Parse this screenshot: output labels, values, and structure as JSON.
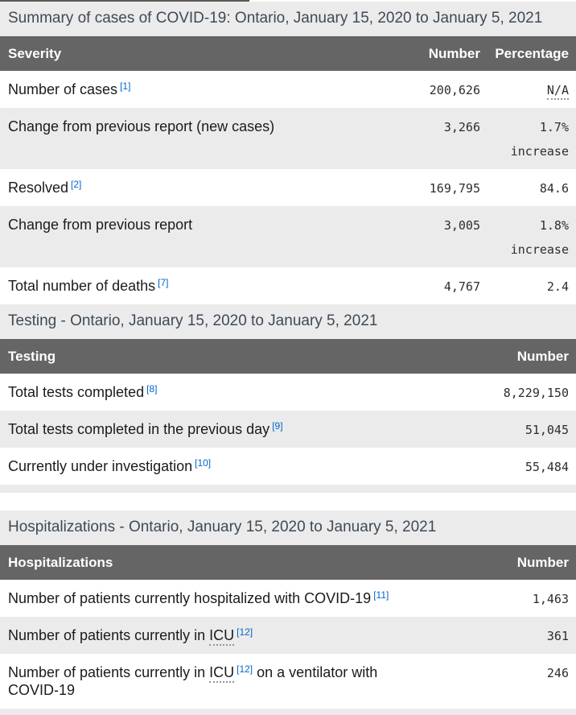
{
  "colors": {
    "header_bg": "#656565",
    "caption_bg": "#ebebeb",
    "row_alt_bg": "#ebebeb",
    "footnote_link": "#0066cc",
    "caption_text": "#3f4a56"
  },
  "tables": [
    {
      "caption": "Summary of cases of COVID-19: Ontario, January 15, 2020 to January 5, 2021",
      "columns": [
        "Severity",
        "Number",
        "Percentage"
      ],
      "rows": [
        {
          "label_parts": [
            {
              "t": "text",
              "v": "Number of cases"
            },
            {
              "t": "fn",
              "v": "[1]"
            }
          ],
          "number": "200,626",
          "pct": {
            "v": "N/A",
            "abbr": true
          }
        },
        {
          "label_parts": [
            {
              "t": "text",
              "v": "Change from previous report (new cases)"
            }
          ],
          "number": "3,266",
          "pct": {
            "v": "1.7%"
          },
          "pct_line2": "increase"
        },
        {
          "label_parts": [
            {
              "t": "text",
              "v": "Resolved"
            },
            {
              "t": "fn",
              "v": "[2]"
            }
          ],
          "number": "169,795",
          "pct": {
            "v": "84.6"
          }
        },
        {
          "label_parts": [
            {
              "t": "text",
              "v": "Change from previous report"
            }
          ],
          "number": "3,005",
          "pct": {
            "v": "1.8%"
          },
          "pct_line2": "increase"
        },
        {
          "label_parts": [
            {
              "t": "text",
              "v": "Total number of deaths"
            },
            {
              "t": "fn",
              "v": "[7]"
            }
          ],
          "number": "4,767",
          "pct": {
            "v": "2.4"
          }
        }
      ]
    },
    {
      "caption": "Testing - Ontario, January 15, 2020 to January 5, 2021",
      "columns": [
        "Testing",
        "Number"
      ],
      "rows": [
        {
          "label_parts": [
            {
              "t": "text",
              "v": "Total tests completed"
            },
            {
              "t": "fn",
              "v": "[8]"
            }
          ],
          "number": "8,229,150"
        },
        {
          "label_parts": [
            {
              "t": "text",
              "v": "Total tests completed in the previous day"
            },
            {
              "t": "fn",
              "v": "[9]"
            }
          ],
          "number": "51,045"
        },
        {
          "label_parts": [
            {
              "t": "text",
              "v": "Currently under investigation"
            },
            {
              "t": "fn",
              "v": "[10]"
            }
          ],
          "number": "55,484"
        }
      ]
    },
    {
      "caption": "Hospitalizations - Ontario, January 15, 2020 to January 5, 2021",
      "columns": [
        "Hospitalizations",
        "Number"
      ],
      "rows": [
        {
          "label_parts": [
            {
              "t": "text",
              "v": "Number of patients currently hospitalized with COVID-19"
            },
            {
              "t": "fn",
              "v": "[11]"
            }
          ],
          "number": "1,463"
        },
        {
          "label_parts": [
            {
              "t": "text",
              "v": "Number of patients currently in "
            },
            {
              "t": "abbr",
              "v": "ICU"
            },
            {
              "t": "fn",
              "v": "[12]"
            }
          ],
          "number": "361"
        },
        {
          "label_parts": [
            {
              "t": "text",
              "v": "Number of patients currently in "
            },
            {
              "t": "abbr",
              "v": "ICU"
            },
            {
              "t": "fn",
              "v": "[12]"
            },
            {
              "t": "text",
              "v": " on a ventilator with COVID-19"
            }
          ],
          "number": "246"
        }
      ]
    }
  ]
}
